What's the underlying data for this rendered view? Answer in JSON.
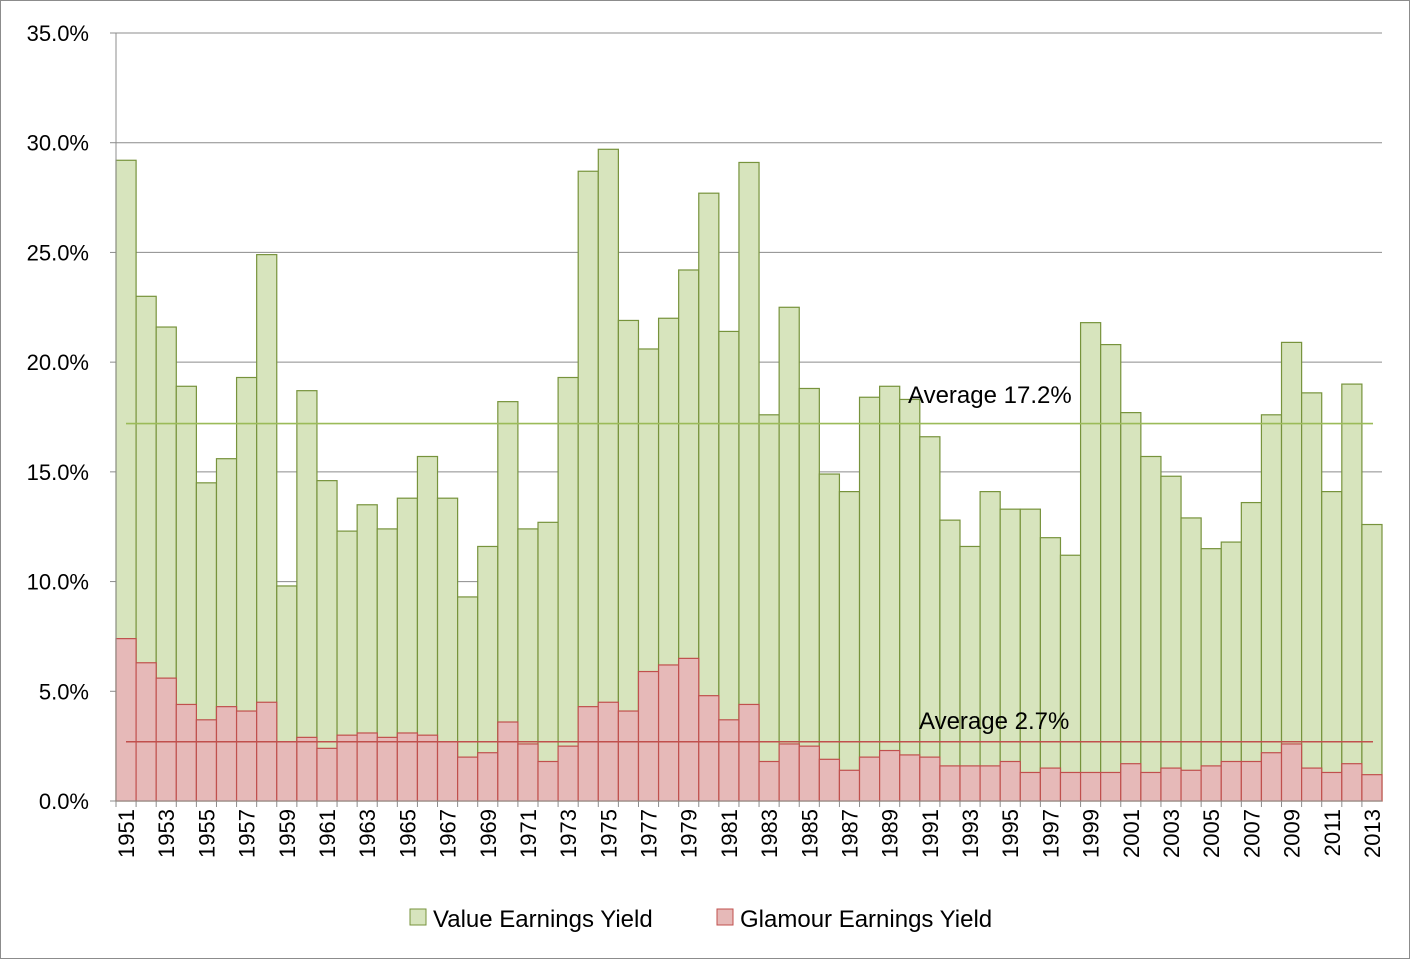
{
  "chart_data": {
    "type": "bar",
    "title": "",
    "xlabel": "",
    "ylabel": "",
    "ylim": [
      0,
      35
    ],
    "yticks": [
      "0.0%",
      "5.0%",
      "10.0%",
      "15.0%",
      "20.0%",
      "25.0%",
      "30.0%",
      "35.0%"
    ],
    "grid": true,
    "legend_position": "bottom",
    "categories": [
      1951,
      1952,
      1953,
      1954,
      1955,
      1956,
      1957,
      1958,
      1959,
      1960,
      1961,
      1962,
      1963,
      1964,
      1965,
      1966,
      1967,
      1968,
      1969,
      1970,
      1971,
      1972,
      1973,
      1974,
      1975,
      1976,
      1977,
      1978,
      1979,
      1980,
      1981,
      1982,
      1983,
      1984,
      1985,
      1986,
      1987,
      1988,
      1989,
      1990,
      1991,
      1992,
      1993,
      1994,
      1995,
      1996,
      1997,
      1998,
      1999,
      2000,
      2001,
      2002,
      2003,
      2004,
      2005,
      2006,
      2007,
      2008,
      2009,
      2010,
      2011,
      2012,
      2013
    ],
    "series": [
      {
        "name": "Value Earnings Yield",
        "color": "#d7e4bd",
        "stroke": "#77933c",
        "values": [
          29.2,
          23.0,
          21.6,
          18.9,
          14.5,
          15.6,
          19.3,
          24.9,
          9.8,
          18.7,
          14.6,
          12.3,
          13.5,
          12.4,
          13.8,
          15.7,
          13.8,
          9.3,
          11.6,
          18.2,
          12.4,
          12.7,
          19.3,
          28.7,
          29.7,
          21.9,
          20.6,
          22.0,
          24.2,
          27.7,
          21.4,
          29.1,
          17.6,
          22.5,
          18.8,
          14.9,
          14.1,
          18.4,
          18.9,
          18.3,
          16.6,
          12.8,
          11.6,
          14.1,
          13.3,
          13.3,
          12.0,
          11.2,
          21.8,
          20.8,
          17.7,
          15.7,
          14.8,
          12.9,
          11.5,
          11.8,
          13.6,
          17.6,
          20.9,
          18.6,
          14.1,
          19.0,
          12.6
        ]
      },
      {
        "name": "Glamour Earnings Yield",
        "color": "#e6b9b8",
        "stroke": "#c0504d",
        "values": [
          7.4,
          6.3,
          5.6,
          4.4,
          3.7,
          4.3,
          4.1,
          4.5,
          2.7,
          2.9,
          2.4,
          3.0,
          3.1,
          2.9,
          3.1,
          3.0,
          2.7,
          2.0,
          2.2,
          3.6,
          2.6,
          1.8,
          2.5,
          4.3,
          4.5,
          4.1,
          5.9,
          6.2,
          6.5,
          4.8,
          3.7,
          4.4,
          1.8,
          2.6,
          2.5,
          1.9,
          1.4,
          2.0,
          2.3,
          2.1,
          2.0,
          1.6,
          1.6,
          1.6,
          1.8,
          1.3,
          1.5,
          1.3,
          1.3,
          1.3,
          1.7,
          1.3,
          1.5,
          1.4,
          1.6,
          1.8,
          1.8,
          2.2,
          2.6,
          1.5,
          1.3,
          1.7,
          1.2
        ]
      }
    ],
    "annotations": [
      {
        "text": "Average 17.2%",
        "value": 17.2,
        "color": "#9bbb59"
      },
      {
        "text": "Average 2.7%",
        "value": 2.7,
        "color": "#c0504d"
      }
    ]
  }
}
